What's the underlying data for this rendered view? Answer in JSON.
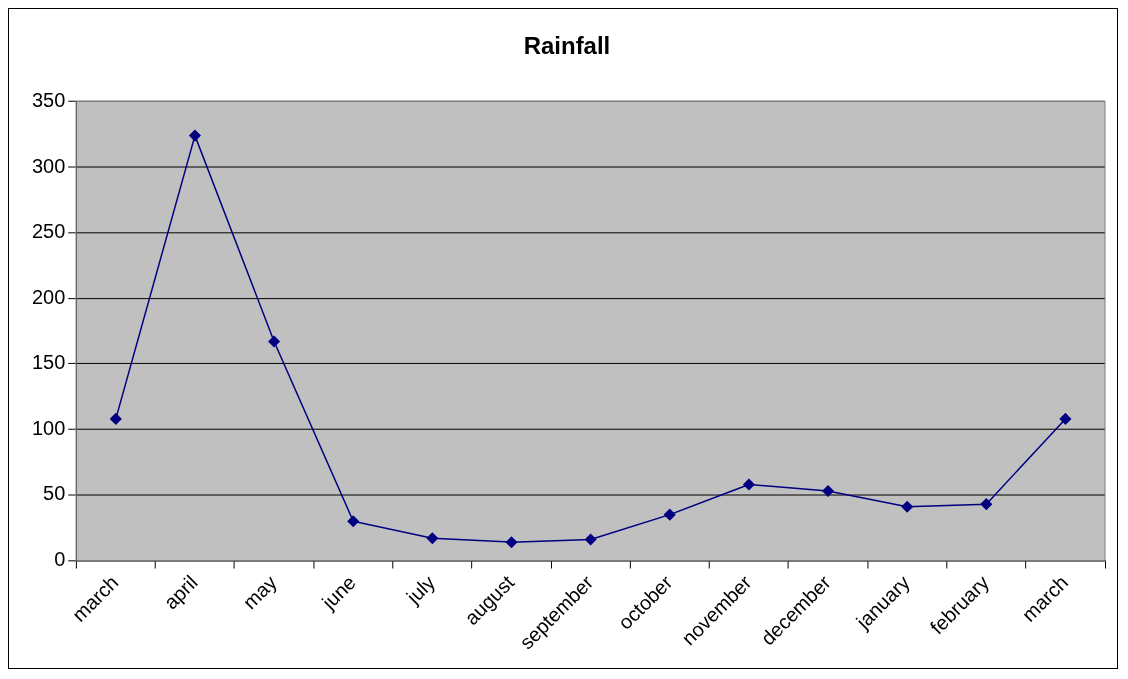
{
  "chart_data": {
    "type": "line",
    "title": "Rainfall",
    "categories": [
      "march",
      "april",
      "may",
      "june",
      "july",
      "august",
      "september",
      "october",
      "november",
      "december",
      "january",
      "february",
      "march"
    ],
    "series": [
      {
        "color": "#000080",
        "values": [
          108,
          324,
          167,
          30,
          17,
          14,
          16,
          35,
          58,
          53,
          41,
          43,
          108
        ]
      }
    ],
    "ylim": [
      0,
      350
    ],
    "yticks": [
      0,
      50,
      100,
      150,
      200,
      250,
      300,
      350
    ],
    "grid": "y",
    "legend": false,
    "marker": "diamond",
    "line_style": "solid"
  }
}
